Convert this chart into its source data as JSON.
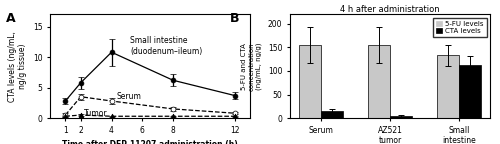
{
  "panel_a": {
    "xlabel": "Time after DFP-11207 administration (h)",
    "ylabel": "CTA levels (ng/mL,\nng/g tissue)",
    "x": [
      1,
      2,
      4,
      6,
      8,
      12
    ],
    "small_intestine": {
      "y": [
        2.8,
        5.8,
        10.8,
        null,
        6.2,
        3.7
      ],
      "yerr": [
        0.5,
        1.0,
        2.2,
        null,
        1.0,
        0.5
      ],
      "label": "Small intestine\n(duodenum–ileum)"
    },
    "serum": {
      "y": [
        0.5,
        3.5,
        2.8,
        null,
        1.5,
        0.8
      ],
      "yerr": [
        0.3,
        0.5,
        0.5,
        null,
        0.3,
        0.2
      ],
      "label": "Serum"
    },
    "tumor": {
      "y": [
        0.3,
        0.5,
        0.3,
        null,
        0.3,
        0.3
      ],
      "yerr": [
        0.1,
        0.15,
        0.1,
        null,
        0.1,
        0.1
      ],
      "label": "Tumor"
    },
    "ylim": [
      0,
      17
    ],
    "yticks": [
      0,
      5,
      10,
      15
    ],
    "xticks": [
      1,
      2,
      4,
      6,
      8,
      12
    ],
    "xlim": [
      0,
      13
    ]
  },
  "panel_b": {
    "title": "4 h after administration",
    "ylabel": "5-FU and CTA\nconcentration\n(ng/mL, ng/g)",
    "groups": [
      "Serum",
      "AZ521\ntumor",
      "Small\nintestine"
    ],
    "fu_values": [
      155,
      155,
      133
    ],
    "fu_errors": [
      38,
      38,
      22
    ],
    "cta_values": [
      15,
      5,
      113
    ],
    "cta_errors": [
      5,
      2,
      18
    ],
    "ylim": [
      0,
      220
    ],
    "yticks": [
      0,
      50,
      100,
      150,
      200
    ],
    "fu_color": "#c8c8c8",
    "cta_color": "#000000",
    "fu_label": "5-FU levels",
    "cta_label": "CTA levels"
  }
}
